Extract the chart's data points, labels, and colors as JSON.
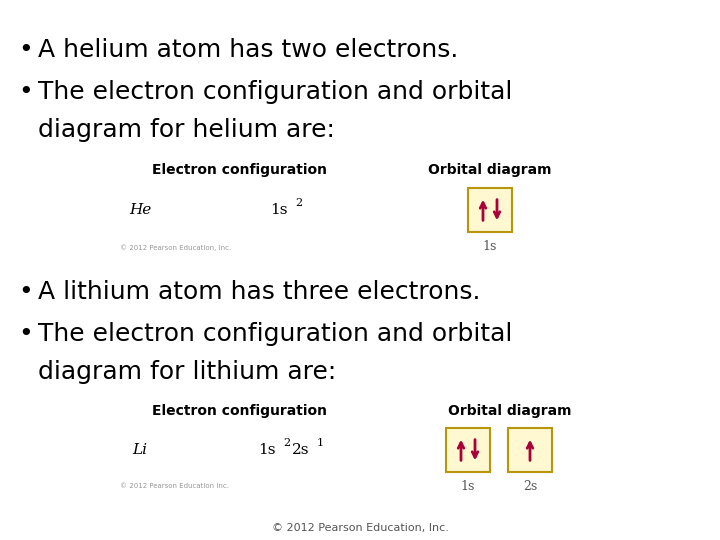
{
  "bg_color": "#ffffff",
  "text_color": "#000000",
  "box_fill": "#fff8d0",
  "box_edge": "#b8960c",
  "arrow_color": "#aa003a",
  "label_color": "#555555",
  "bullet1": "A helium atom has two electrons.",
  "bullet2_line1": "The electron configuration and orbital",
  "bullet2_line2": "diagram for helium are:",
  "he_label": "He",
  "he_orbital_label": "1s",
  "bullet3": "A lithium atom has three electrons.",
  "bullet4_line1": "The electron configuration and orbital",
  "bullet4_line2": "diagram for lithium are:",
  "li_label": "Li",
  "li_orbital_label1": "1s",
  "li_orbital_label2": "2s",
  "ec_header": "Electron configuration",
  "od_header": "Orbital diagram",
  "copyright": "© 2012 Pearson Education, Inc."
}
